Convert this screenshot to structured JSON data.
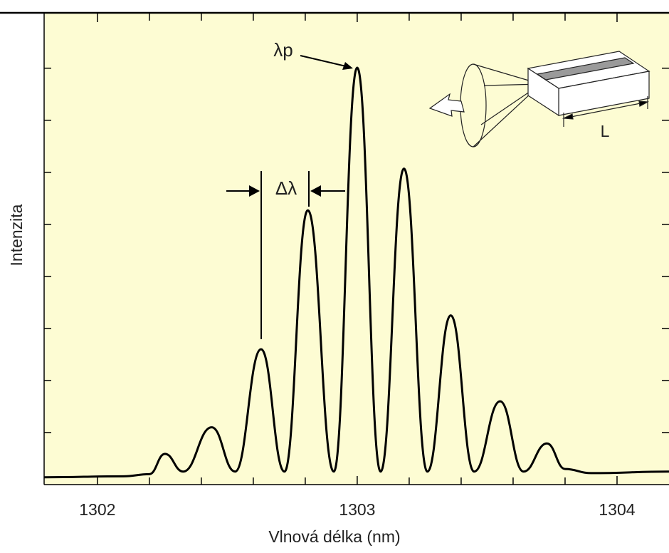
{
  "chart_data": {
    "type": "line",
    "x_label": "Vlnová délka (nm)",
    "y_label": "Intenzita",
    "x": [
      1301.795,
      1302.1,
      1302.2,
      1302.26,
      1302.33,
      1302.44,
      1302.53,
      1302.63,
      1302.72,
      1302.81,
      1302.91,
      1303.0,
      1303.09,
      1303.18,
      1303.27,
      1303.36,
      1303.45,
      1303.55,
      1303.64,
      1303.73,
      1303.8,
      1303.9,
      1304.2
    ],
    "series": [
      {
        "color": "#000000",
        "values": [
          0.14,
          0.16,
          0.2,
          0.59,
          0.25,
          1.1,
          0.25,
          2.6,
          0.25,
          5.27,
          0.25,
          8.01,
          0.25,
          6.07,
          0.25,
          3.25,
          0.25,
          1.6,
          0.25,
          0.79,
          0.3,
          0.22,
          0.25
        ]
      }
    ],
    "xlim": [
      1301.795,
      1304.2
    ],
    "xticks": [
      1302,
      1303,
      1304
    ],
    "x_minor_ticks": [
      1302.2,
      1302.4,
      1302.6,
      1302.8,
      1303.2,
      1303.4,
      1303.6,
      1303.8
    ],
    "ylim": [
      0,
      9.05
    ],
    "yticks": [
      1,
      2,
      3,
      4,
      5,
      6,
      7,
      8
    ],
    "background": "#fdfcd3",
    "annotations": {
      "peak_label": "λp",
      "spacing_label": "Δλ",
      "length_label": "L"
    }
  }
}
